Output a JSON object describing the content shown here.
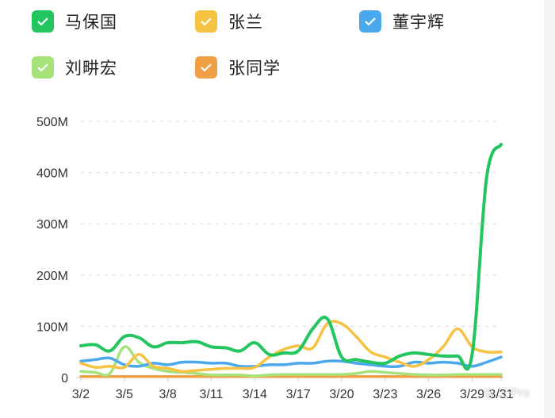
{
  "legend": [
    {
      "name": "马保国",
      "color": "#22c55e"
    },
    {
      "name": "张兰",
      "color": "#f5c242"
    },
    {
      "name": "董宇辉",
      "color": "#4aa8ec"
    },
    {
      "name": "刘畊宏",
      "color": "#a6e27a"
    },
    {
      "name": "张同学",
      "color": "#efa044"
    }
  ],
  "watermark": "@ 三·Pro",
  "chart_data": {
    "type": "line",
    "title": "",
    "xlabel": "",
    "ylabel": "",
    "ylim": [
      0,
      500
    ],
    "y_unit": "M",
    "y_ticks": [
      "0",
      "100M",
      "200M",
      "300M",
      "400M",
      "500M"
    ],
    "grid": true,
    "legend_position": "top",
    "x": [
      "3/2",
      "3/3",
      "3/4",
      "3/5",
      "3/6",
      "3/7",
      "3/8",
      "3/9",
      "3/10",
      "3/11",
      "3/12",
      "3/13",
      "3/14",
      "3/15",
      "3/16",
      "3/17",
      "3/18",
      "3/19",
      "3/20",
      "3/21",
      "3/22",
      "3/23",
      "3/24",
      "3/25",
      "3/26",
      "3/27",
      "3/28",
      "3/29",
      "3/30",
      "3/31"
    ],
    "x_tick_labels": [
      "3/2",
      "3/5",
      "3/8",
      "3/11",
      "3/14",
      "3/17",
      "3/20",
      "3/23",
      "3/26",
      "3/29",
      "3/31"
    ],
    "series": [
      {
        "name": "马保国",
        "color": "#22c55e",
        "values": [
          62,
          64,
          52,
          80,
          78,
          60,
          68,
          68,
          70,
          60,
          58,
          52,
          68,
          45,
          48,
          52,
          95,
          115,
          40,
          35,
          30,
          28,
          42,
          48,
          45,
          42,
          42,
          45,
          390,
          455
        ]
      },
      {
        "name": "张兰",
        "color": "#f5c242",
        "values": [
          28,
          20,
          22,
          20,
          45,
          22,
          18,
          12,
          14,
          16,
          18,
          18,
          20,
          40,
          55,
          62,
          58,
          105,
          105,
          80,
          50,
          40,
          30,
          22,
          35,
          60,
          95,
          60,
          50,
          50
        ]
      },
      {
        "name": "董宇辉",
        "color": "#4aa8ec",
        "values": [
          32,
          35,
          38,
          25,
          22,
          28,
          25,
          30,
          30,
          28,
          28,
          22,
          22,
          25,
          25,
          28,
          28,
          32,
          32,
          28,
          25,
          22,
          22,
          30,
          28,
          30,
          28,
          22,
          30,
          40
        ]
      },
      {
        "name": "刘畊宏",
        "color": "#a6e27a",
        "values": [
          12,
          10,
          8,
          60,
          30,
          18,
          12,
          10,
          8,
          5,
          5,
          5,
          3,
          5,
          6,
          6,
          6,
          6,
          6,
          8,
          12,
          10,
          8,
          6,
          5,
          5,
          6,
          6,
          6,
          6
        ]
      },
      {
        "name": "张同学",
        "color": "#efa044",
        "values": [
          2,
          2,
          2,
          2,
          2,
          2,
          2,
          2,
          2,
          2,
          2,
          2,
          2,
          2,
          2,
          2,
          2,
          2,
          2,
          2,
          2,
          2,
          2,
          2,
          2,
          2,
          2,
          2,
          2,
          2
        ]
      }
    ]
  }
}
